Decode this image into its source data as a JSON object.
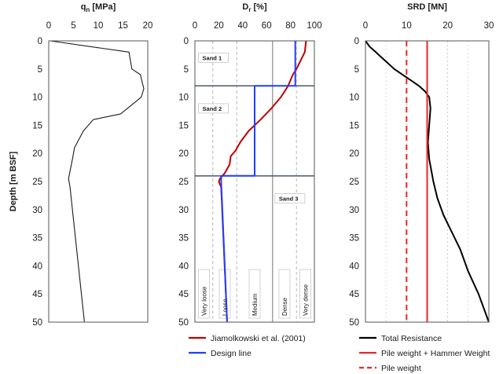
{
  "chart_data": [
    {
      "type": "line",
      "title": "qₙ [MPa]",
      "title_main": "q",
      "title_sub": "n",
      "title_unit": " [MPa]",
      "ylabel": "Depth [m BSF]",
      "xlim": [
        0,
        20
      ],
      "ylim": [
        0,
        50
      ],
      "y_inverted": true,
      "x_ticks": [
        "0",
        "5",
        "10",
        "15",
        "20"
      ],
      "y_ticks": [
        "0",
        "5",
        "10",
        "15",
        "20",
        "25",
        "30",
        "35",
        "40",
        "45",
        "50"
      ],
      "series": [
        {
          "color": "#1a1a1a",
          "x": [
            0.3,
            16.2,
            16.8,
            18.5,
            19.2,
            18.7,
            14.5,
            9.0,
            7.0,
            5.2,
            4.8,
            4.0,
            4.3,
            7.2
          ],
          "y": [
            0,
            2,
            5,
            6,
            8.5,
            10,
            13,
            14,
            16,
            19,
            21,
            24.5,
            26,
            50
          ]
        }
      ]
    },
    {
      "type": "line",
      "title": "Dᵣ [%]",
      "title_main": "D",
      "title_sub": "r",
      "title_unit": " [%]",
      "xlim": [
        0,
        100
      ],
      "ylim": [
        0,
        50
      ],
      "y_inverted": true,
      "x_ticks": [
        "0",
        "20",
        "40",
        "60",
        "80",
        "100"
      ],
      "y_ticks": [
        "0",
        "5",
        "10",
        "15",
        "20",
        "25",
        "30",
        "35",
        "40",
        "45",
        "50"
      ],
      "layer_boundaries": [
        8,
        24
      ],
      "zone_boundaries": [
        15,
        35,
        65,
        85
      ],
      "layers": [
        {
          "label": "Sand 1",
          "depth": 3
        },
        {
          "label": "Sand 2",
          "depth": 12
        },
        {
          "label": "Sand 3",
          "depth": 28
        }
      ],
      "zones": [
        {
          "label": "Very loose",
          "x": 7.5
        },
        {
          "label": "Loose",
          "x": 25
        },
        {
          "label": "Medium",
          "x": 50
        },
        {
          "label": "Dense",
          "x": 75
        },
        {
          "label": "Very dense",
          "x": 92.5
        }
      ],
      "series": [
        {
          "name": "Jiamolkowski et al. (2001)",
          "color": "#c00000",
          "x": [
            93,
            92,
            85,
            82,
            78,
            72,
            64,
            55,
            45,
            38,
            34,
            30,
            29,
            25,
            21,
            20,
            22,
            27
          ],
          "y": [
            0,
            2,
            5,
            6,
            8,
            10,
            12,
            14,
            16,
            18,
            19.5,
            20.5,
            22,
            23.5,
            24.5,
            25,
            26,
            50
          ]
        },
        {
          "name": "Design line",
          "color": "#1f3fff",
          "x": [
            84,
            84,
            84,
            50,
            50,
            50,
            22,
            22,
            27
          ],
          "y": [
            0,
            7.5,
            8,
            8,
            15,
            24,
            24,
            25,
            50
          ]
        }
      ]
    },
    {
      "type": "line",
      "title": "SRD [MN]",
      "xlim": [
        0,
        30
      ],
      "ylim": [
        0,
        50
      ],
      "y_inverted": true,
      "x_ticks": [
        "0",
        "10",
        "20",
        "30"
      ],
      "y_ticks": [
        "0",
        "5",
        "10",
        "15",
        "20",
        "25",
        "30",
        "35",
        "40",
        "45",
        "50"
      ],
      "series": [
        {
          "name": "Total Resistance",
          "color": "#000000",
          "x": [
            0,
            1,
            2.5,
            4,
            5.5,
            7,
            9,
            11,
            13,
            14.5,
            15.5,
            15.8,
            15.5,
            15.2,
            15.5,
            16.5,
            17.5,
            19,
            21,
            23,
            25,
            27.5,
            30
          ],
          "y": [
            0,
            1,
            2,
            3,
            4,
            5,
            6,
            7,
            8,
            9,
            10,
            12,
            15,
            18,
            21,
            25,
            28,
            31,
            34,
            37,
            41,
            45,
            50
          ]
        },
        {
          "name": "Pile weight + Hammer Weight",
          "color": "#e8262a",
          "style": "solid",
          "x": [
            15,
            15
          ],
          "y": [
            0,
            50
          ]
        },
        {
          "name": "Pile weight",
          "color": "#e8262a",
          "style": "dashed",
          "x": [
            10,
            10
          ],
          "y": [
            0,
            50
          ]
        }
      ]
    }
  ]
}
